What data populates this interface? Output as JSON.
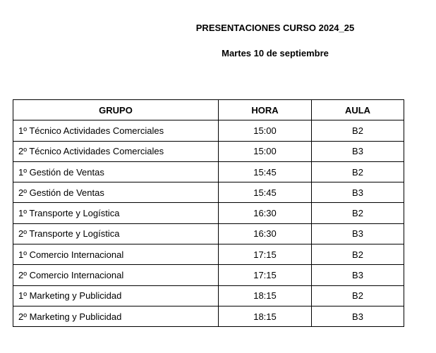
{
  "title": "PRESENTACIONES CURSO 2024_25",
  "subtitle": "Martes 10 de septiembre",
  "table": {
    "headers": [
      "GRUPO",
      "HORA",
      "AULA"
    ],
    "rows": [
      [
        "1º Técnico Actividades Comerciales",
        "15:00",
        "B2"
      ],
      [
        "2º Técnico Actividades Comerciales",
        "15:00",
        "B3"
      ],
      [
        "1º Gestión de Ventas",
        "15:45",
        "B2"
      ],
      [
        "2º Gestión de Ventas",
        "15:45",
        "B3"
      ],
      [
        "1º Transporte y Logística",
        "16:30",
        "B2"
      ],
      [
        "2º Transporte y Logística",
        "16:30",
        "B3"
      ],
      [
        "1º Comercio Internacional",
        "17:15",
        "B2"
      ],
      [
        "2º Comercio Internacional",
        "17:15",
        "B3"
      ],
      [
        "1º Marketing y Publicidad",
        "18:15",
        "B2"
      ],
      [
        "2º Marketing y Publicidad",
        "18:15",
        "B3"
      ]
    ]
  }
}
